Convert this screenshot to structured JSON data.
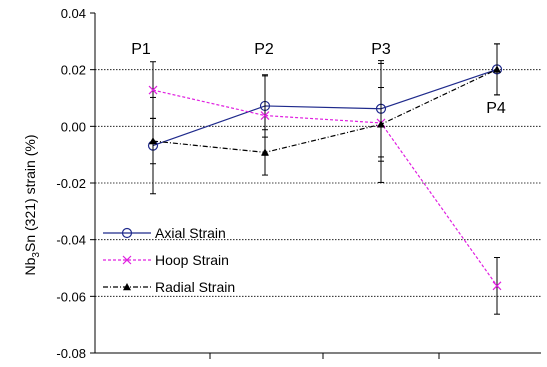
{
  "chart_data": {
    "type": "line",
    "ylabel_main": "Nb",
    "ylabel_sub": "3",
    "ylabel_rest": "Sn (321) strain (%)",
    "ylim": [
      -0.08,
      0.04
    ],
    "yticks": [
      {
        "v": 0.04,
        "label": "0.04"
      },
      {
        "v": 0.02,
        "label": "0.02"
      },
      {
        "v": 0.0,
        "label": "0.00"
      },
      {
        "v": -0.02,
        "label": "-0.02"
      },
      {
        "v": -0.04,
        "label": "-0.04"
      },
      {
        "v": -0.06,
        "label": "-0.06"
      },
      {
        "v": -0.08,
        "label": "-0.08"
      }
    ],
    "grid": "horizontal dotted at 0.02, 0.00, -0.02, -0.04, -0.06",
    "legend_position": "lower-left",
    "point_labels": [
      "P1",
      "P2",
      "P3",
      "P4"
    ],
    "series": [
      {
        "name": "Axial Strain",
        "color": "#1f2a8c",
        "marker": "circle",
        "line": "solid",
        "values": [
          -0.0068,
          0.0072,
          0.0062,
          0.0201
        ],
        "error": [
          0.017,
          0.011,
          0.017,
          0.009
        ]
      },
      {
        "name": "Hoop Strain",
        "color": "#e020e0",
        "marker": "x",
        "line": "dashed",
        "values": [
          0.0128,
          0.0038,
          0.0012,
          -0.0563
        ],
        "error": [
          0.01,
          0.014,
          0.021,
          0.01
        ]
      },
      {
        "name": "Radial Strain",
        "color": "#000000",
        "marker": "triangle",
        "line": "dashdot",
        "values": [
          -0.0052,
          -0.0092,
          0.0007,
          0.0201
        ],
        "error": [
          0.008,
          0.008,
          0.013,
          0.009
        ]
      }
    ]
  }
}
